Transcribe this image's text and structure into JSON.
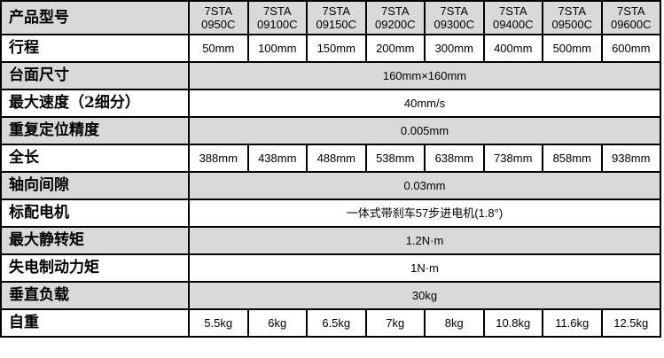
{
  "header": {
    "label": "产品型号",
    "models": [
      "7STA\n0950C",
      "7STA\n09100C",
      "7STA\n09150C",
      "7STA\n09200C",
      "7STA\n09300C",
      "7STA\n09400C",
      "7STA\n09500C",
      "7STA\n09600C"
    ]
  },
  "rows": [
    {
      "label": "行程",
      "values": [
        "50mm",
        "100mm",
        "150mm",
        "200mm",
        "300mm",
        "400mm",
        "500mm",
        "600mm"
      ]
    },
    {
      "label": "台面尺寸",
      "value": "160mm×160mm"
    },
    {
      "label": "最大速度（2细分）",
      "value": "40mm/s"
    },
    {
      "label": "重复定位精度",
      "value": "0.005mm"
    },
    {
      "label": "全长",
      "values": [
        "388mm",
        "438mm",
        "488mm",
        "538mm",
        "638mm",
        "738mm",
        "858mm",
        "938mm"
      ]
    },
    {
      "label": "轴向间隙",
      "value": "0.03mm"
    },
    {
      "label": "标配电机",
      "value": "一体式带刹车57步进电机(1.8°)"
    },
    {
      "label": "最大静转矩",
      "value": "1.2N·m"
    },
    {
      "label": "失电制动力矩",
      "value": "1N·m"
    },
    {
      "label": "垂直负载",
      "value": "30kg"
    },
    {
      "label": "自重",
      "values": [
        "5.5kg",
        "6kg",
        "6.5kg",
        "7kg",
        "8kg",
        "10.8kg",
        "11.6kg",
        "12.5kg"
      ]
    }
  ],
  "colors": {
    "shaded_row": "#d9d9d9",
    "border": "#000000"
  }
}
